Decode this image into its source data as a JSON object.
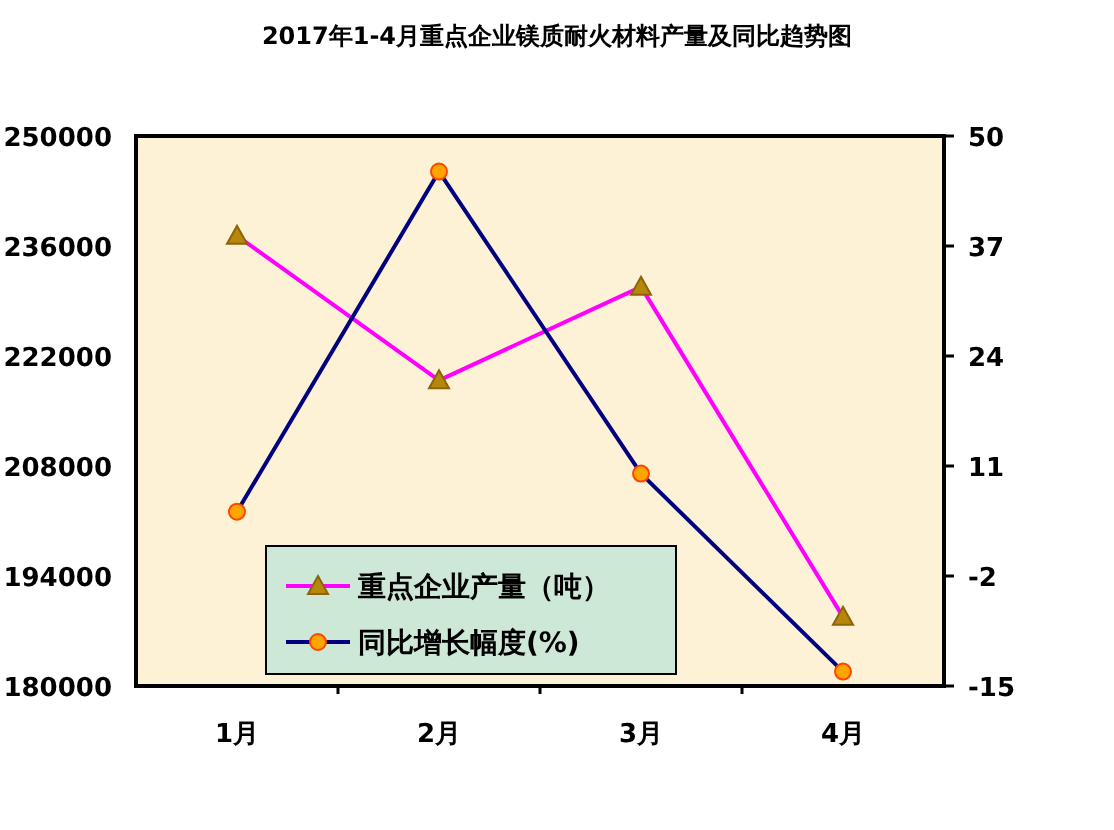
{
  "chart_data": {
    "type": "line",
    "title": "2017年1-4月重点企业镁质耐火材料产量及同比趋势图",
    "categories": [
      "1月",
      "2月",
      "3月",
      "4月"
    ],
    "series": [
      {
        "name": "重点企业产量（吨）",
        "color": "#ff00ff",
        "marker": "triangle",
        "values": [
          237300,
          218900,
          230800,
          188800
        ]
      },
      {
        "name": "同比增长幅度(%)",
        "color": "#000080",
        "marker": "circle",
        "axis": "y2",
        "values": [
          5.6,
          45.8,
          10.1,
          -13.3
        ]
      }
    ],
    "ylim": [
      180000,
      250000
    ],
    "yticks": [
      180000,
      194000,
      208000,
      222000,
      236000,
      250000
    ],
    "y2lim": [
      -15,
      50
    ],
    "y2ticks": [
      -15,
      -2,
      11,
      24,
      37,
      50
    ],
    "legend": "bottom left",
    "grid": false
  }
}
